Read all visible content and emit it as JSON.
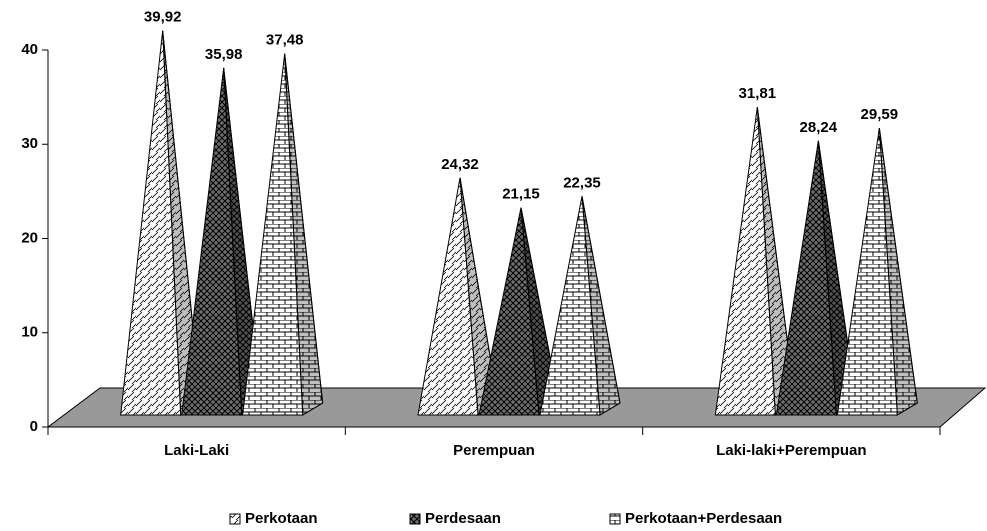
{
  "chart_data": {
    "type": "pyramid",
    "categories": [
      "Laki-Laki",
      "Perempuan",
      "Laki-laki+Perempuan"
    ],
    "series": [
      {
        "name": "Perkotaan",
        "color": "#ffffff",
        "pattern": "diagonal",
        "values": [
          39.92,
          24.32,
          31.81
        ],
        "value_labels": [
          "39,92",
          "24,32",
          "31,81"
        ]
      },
      {
        "name": "Perdesaan",
        "color": "#6e6e6e",
        "pattern": "crosshatch",
        "values": [
          35.98,
          21.15,
          28.24
        ],
        "value_labels": [
          "35,98",
          "21,15",
          "28,24"
        ]
      },
      {
        "name": "Perkotaan+Perdesaan",
        "color": "#ffffff",
        "pattern": "brick",
        "values": [
          37.48,
          22.35,
          29.59
        ],
        "value_labels": [
          "37,48",
          "22,35",
          "29,59"
        ]
      }
    ],
    "ylim": [
      0,
      40
    ],
    "yticks": [
      0,
      10,
      20,
      30,
      40
    ],
    "legend": "bottom"
  }
}
